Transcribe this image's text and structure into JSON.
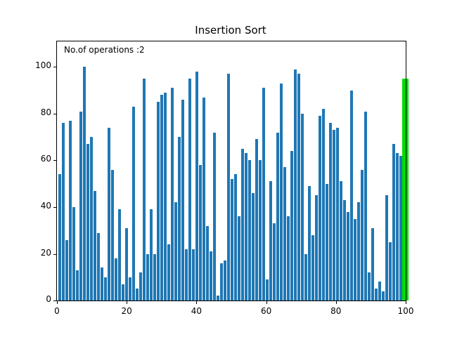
{
  "chart_data": {
    "type": "bar",
    "title": "Insertion Sort",
    "annotation": "No.of operations :2",
    "xlabel": "",
    "ylabel": "",
    "xlim": [
      0,
      100
    ],
    "ylim": [
      0,
      111
    ],
    "grid": false,
    "legend": null,
    "n_bars": 99,
    "bar_color": "#1f77b4",
    "highlight_color": "#00dd00",
    "highlight_index": 98,
    "xticks": [
      0,
      20,
      40,
      60,
      80,
      100
    ],
    "yticks": [
      0,
      20,
      40,
      60,
      80,
      100
    ],
    "values": [
      54,
      76,
      26,
      77,
      40,
      13,
      81,
      100,
      67,
      70,
      47,
      29,
      14,
      10,
      74,
      56,
      18,
      39,
      7,
      31,
      10,
      83,
      5,
      12,
      95,
      20,
      39,
      20,
      85,
      88,
      89,
      24,
      91,
      42,
      70,
      86,
      22,
      95,
      22,
      98,
      58,
      87,
      32,
      21,
      72,
      2,
      16,
      17,
      97,
      52,
      54,
      36,
      65,
      63,
      60,
      46,
      69,
      60,
      91,
      9,
      51,
      33,
      72,
      93,
      57,
      36,
      64,
      99,
      97,
      80,
      20,
      49,
      28,
      45,
      79,
      82,
      50,
      76,
      73,
      74,
      51,
      43,
      38,
      90,
      35,
      42,
      56,
      81,
      12,
      31,
      5,
      8,
      4,
      45,
      25,
      67,
      63,
      62,
      95
    ]
  }
}
